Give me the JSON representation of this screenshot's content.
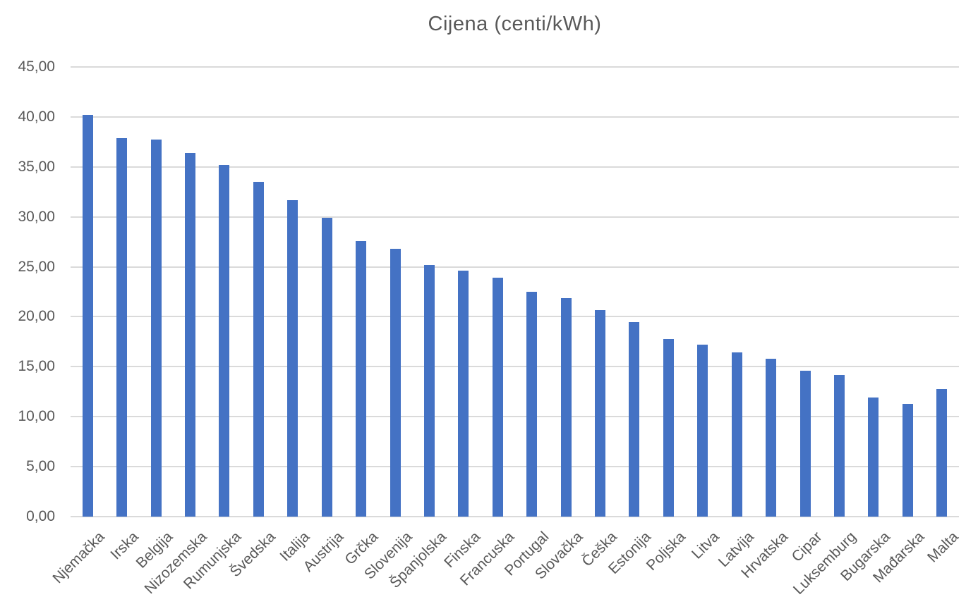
{
  "chart_data": {
    "type": "bar",
    "title": "Cijena (centi/kWh)",
    "categories": [
      "Njemačka",
      "Irska",
      "Belgija",
      "Nizozemska",
      "Rumunjska",
      "Švedska",
      "Italija",
      "Austrija",
      "Grčka",
      "Slovenija",
      "Španjolska",
      "Finska",
      "Francuska",
      "Portugal",
      "Slovačka",
      "Češka",
      "Estonija",
      "Poljska",
      "Litva",
      "Latvija",
      "Hrvatska",
      "Cipar",
      "Luksemburg",
      "Bugarska",
      "Mađarska",
      "Malta"
    ],
    "values": [
      40.2,
      37.9,
      37.7,
      36.4,
      35.2,
      33.5,
      31.7,
      29.9,
      27.6,
      26.8,
      25.2,
      24.6,
      23.9,
      22.5,
      21.9,
      20.7,
      19.5,
      17.8,
      17.2,
      16.4,
      15.8,
      14.6,
      14.2,
      11.9,
      11.3,
      12.8
    ],
    "xlabel": "",
    "ylabel": "",
    "ylim": [
      0,
      45
    ],
    "y_tick_step": 5,
    "y_tick_labels": [
      "0,00",
      "5,00",
      "10,00",
      "15,00",
      "20,00",
      "25,00",
      "30,00",
      "35,00",
      "40,00",
      "45,00"
    ],
    "grid": "horizontal",
    "legend": "none",
    "bar_color": "#4472C4",
    "gridline_color": "#dadada",
    "text_color": "#595959"
  }
}
